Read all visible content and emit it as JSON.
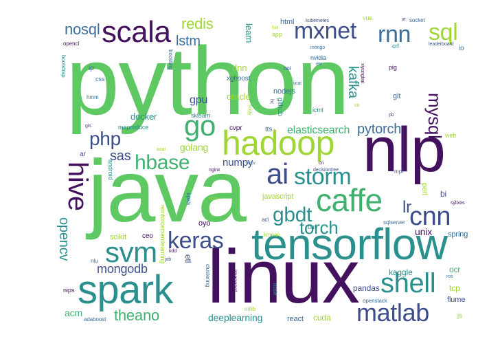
{
  "palette": {
    "deep_purple": "#44115e",
    "indigo": "#3d4e8a",
    "blue": "#3b6e9a",
    "teal": "#2a8f8d",
    "green": "#40b06f",
    "bright_green": "#5ec962",
    "lime": "#9fd534",
    "yellow": "#d8e219"
  },
  "words": [
    "python",
    "java",
    "nlp",
    "linux",
    "tensorflow",
    "spark",
    "hadoop",
    "caffe",
    "scala",
    "mxnet",
    "hive",
    "ai",
    "storm",
    "go",
    "svm",
    "keras",
    "cnn",
    "sql",
    "rnn",
    "shell",
    "matlab",
    "nosql",
    "redis",
    "lstm",
    "php",
    "hbase",
    "sas",
    "gbdt",
    "torch",
    "lr",
    "mysql",
    "pytorch",
    "kafka",
    "opencv",
    "mongodb",
    "theano",
    "gpu",
    "golang",
    "elasticsearch",
    "docker",
    "numpy",
    "oracle",
    "dnn",
    "learn",
    "xgboost",
    "nodejs",
    "github",
    "javascript",
    "unix",
    "spring",
    "scikit",
    "oyo",
    "ceo",
    "etl",
    "deeplearning",
    "pandas",
    "kaggle",
    "ocr",
    "tcp",
    "flume",
    "cuda",
    "react",
    "acm",
    "adaboost",
    "nips",
    "mllib",
    "clustering",
    "imagenet",
    "node",
    "openstack",
    "sqlserver",
    "kmean",
    "acl",
    "bat",
    "perl",
    "bi",
    "sylixos",
    "mpi",
    "decisiontree",
    "cn",
    "iccv",
    "eccv",
    "spss",
    "reinforcementlearning",
    "android",
    "aaai",
    "nginx",
    "cvpr",
    "tts",
    "scipy",
    "icml",
    "ctr",
    "pb",
    "git",
    "pig",
    "xiyangbai",
    "nvidia",
    "etc",
    "noi",
    "ijcai",
    "hc",
    "html",
    "app",
    "lua",
    "kubernetes",
    "vue",
    "vr",
    "socket",
    "leaderboard",
    "io",
    "crf",
    "mongo",
    "opencl",
    "boosting",
    "ip",
    "css",
    "hmm",
    "bootstrap",
    "gis",
    "mapreduce",
    "ar",
    "sklearn",
    "kdd",
    "job",
    "nlu",
    "ros",
    "js",
    "web"
  ]
}
